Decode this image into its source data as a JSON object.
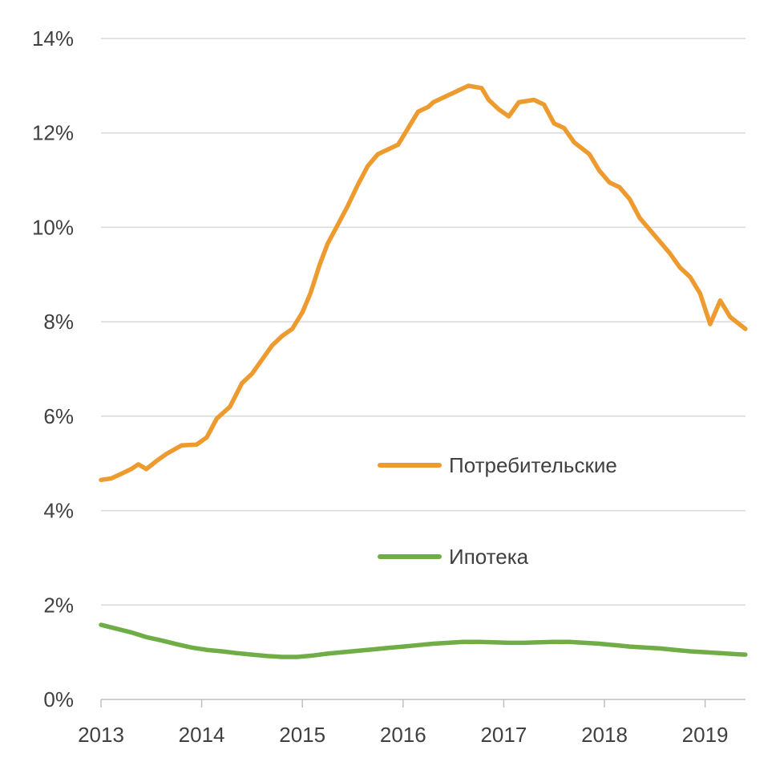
{
  "chart_data": {
    "type": "line",
    "title": "",
    "xlabel": "",
    "ylabel": "",
    "x_ticks": [
      "2013",
      "2014",
      "2015",
      "2016",
      "2017",
      "2018",
      "2019"
    ],
    "y_ticks": [
      "0%",
      "2%",
      "4%",
      "6%",
      "8%",
      "10%",
      "12%",
      "14%"
    ],
    "xlim": [
      2013,
      2019.42
    ],
    "ylim": [
      0,
      14
    ],
    "grid": true,
    "legend_position": "center-right",
    "series": [
      {
        "name": "Потребительские",
        "color": "#ed9a2e",
        "x": [
          2013.0,
          2013.1,
          2013.2,
          2013.3,
          2013.37,
          2013.45,
          2013.55,
          2013.65,
          2013.8,
          2013.95,
          2014.05,
          2014.15,
          2014.28,
          2014.4,
          2014.5,
          2014.6,
          2014.7,
          2014.8,
          2014.9,
          2015.0,
          2015.08,
          2015.17,
          2015.25,
          2015.35,
          2015.45,
          2015.55,
          2015.65,
          2015.75,
          2015.85,
          2015.95,
          2016.05,
          2016.15,
          2016.25,
          2016.3,
          2016.35,
          2016.45,
          2016.55,
          2016.65,
          2016.78,
          2016.85,
          2016.95,
          2017.05,
          2017.15,
          2017.3,
          2017.4,
          2017.5,
          2017.6,
          2017.7,
          2017.85,
          2017.95,
          2018.05,
          2018.15,
          2018.25,
          2018.35,
          2018.45,
          2018.55,
          2018.65,
          2018.75,
          2018.85,
          2018.95,
          2019.05,
          2019.15,
          2019.25,
          2019.4
        ],
        "values": [
          4.65,
          4.68,
          4.78,
          4.88,
          4.98,
          4.88,
          5.05,
          5.2,
          5.38,
          5.4,
          5.55,
          5.95,
          6.2,
          6.7,
          6.9,
          7.2,
          7.5,
          7.7,
          7.85,
          8.2,
          8.6,
          9.2,
          9.65,
          10.05,
          10.45,
          10.9,
          11.3,
          11.55,
          11.65,
          11.75,
          12.1,
          12.45,
          12.55,
          12.65,
          12.7,
          12.8,
          12.9,
          13.0,
          12.95,
          12.7,
          12.5,
          12.35,
          12.65,
          12.7,
          12.6,
          12.2,
          12.1,
          11.8,
          11.55,
          11.2,
          10.95,
          10.85,
          10.6,
          10.2,
          9.95,
          9.7,
          9.45,
          9.15,
          8.95,
          8.6,
          7.95,
          8.45,
          8.1,
          7.85
        ]
      },
      {
        "name": "Ипотека",
        "color": "#70ad47",
        "x": [
          2013.0,
          2013.15,
          2013.3,
          2013.45,
          2013.6,
          2013.75,
          2013.9,
          2014.05,
          2014.2,
          2014.35,
          2014.5,
          2014.65,
          2014.8,
          2014.95,
          2015.1,
          2015.25,
          2015.4,
          2015.55,
          2015.7,
          2015.85,
          2016.0,
          2016.15,
          2016.3,
          2016.45,
          2016.6,
          2016.75,
          2016.9,
          2017.05,
          2017.2,
          2017.35,
          2017.5,
          2017.65,
          2017.8,
          2017.95,
          2018.1,
          2018.25,
          2018.4,
          2018.55,
          2018.7,
          2018.85,
          2019.0,
          2019.15,
          2019.3,
          2019.4
        ],
        "values": [
          1.58,
          1.5,
          1.42,
          1.32,
          1.25,
          1.17,
          1.1,
          1.05,
          1.02,
          0.98,
          0.95,
          0.92,
          0.9,
          0.9,
          0.93,
          0.97,
          1.0,
          1.03,
          1.06,
          1.09,
          1.12,
          1.15,
          1.18,
          1.2,
          1.22,
          1.22,
          1.21,
          1.2,
          1.2,
          1.21,
          1.22,
          1.22,
          1.2,
          1.18,
          1.15,
          1.12,
          1.1,
          1.08,
          1.05,
          1.02,
          1.0,
          0.98,
          0.96,
          0.95
        ]
      }
    ],
    "legend_labels": {
      "consumer": "Потребительские",
      "mortgage": "Ипотека"
    }
  }
}
